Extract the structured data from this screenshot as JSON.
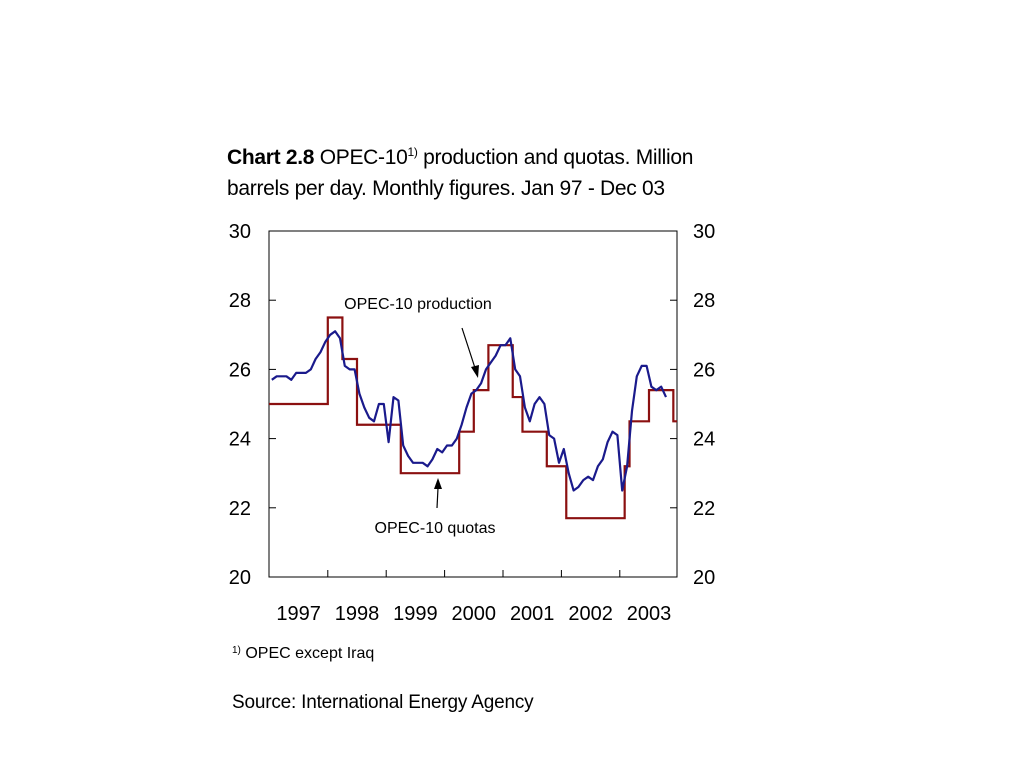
{
  "title": {
    "label": "Chart 2.8",
    "text1": "OPEC-10",
    "sup": "1)",
    "text2": " production and quotas. Million barrels per day. Monthly figures. Jan 97 - Dec 03"
  },
  "footnote": {
    "sup": "1)",
    "text": " OPEC except Iraq"
  },
  "source": "Source: International Energy Agency",
  "colors": {
    "production": "#1a1a8c",
    "quotas": "#8b1010",
    "axis": "#000000"
  },
  "chart_data": {
    "type": "line",
    "x_start": "1997-01",
    "x_step": "month",
    "xtick_labels": [
      "1997",
      "1998",
      "1999",
      "2000",
      "2001",
      "2002",
      "2003"
    ],
    "ylim": [
      20,
      30
    ],
    "yticks": [
      20,
      22,
      24,
      26,
      28,
      30
    ],
    "y_axis_right_mirror": true,
    "grid": false,
    "annotations": [
      {
        "text": "OPEC-10 production",
        "target_series": "OPEC-10 production"
      },
      {
        "text": "OPEC-10 quotas",
        "target_series": "OPEC-10 quotas"
      }
    ],
    "series": [
      {
        "name": "OPEC-10 production",
        "values": [
          25.7,
          25.8,
          25.8,
          25.8,
          25.7,
          25.9,
          25.9,
          25.9,
          26.0,
          26.3,
          26.5,
          26.8,
          27.0,
          27.1,
          26.9,
          26.1,
          26.0,
          26.0,
          25.3,
          24.9,
          24.6,
          24.5,
          25.0,
          25.0,
          23.9,
          25.2,
          25.1,
          23.8,
          23.5,
          23.3,
          23.3,
          23.3,
          23.2,
          23.4,
          23.7,
          23.6,
          23.8,
          23.8,
          24.0,
          24.4,
          24.9,
          25.3,
          25.4,
          25.6,
          26.0,
          26.2,
          26.4,
          26.7,
          26.7,
          26.9,
          26.0,
          25.8,
          24.9,
          24.5,
          25.0,
          25.2,
          25.0,
          24.1,
          24.0,
          23.3,
          23.7,
          23.0,
          22.5,
          22.6,
          22.8,
          22.9,
          22.8,
          23.2,
          23.4,
          23.9,
          24.2,
          24.1,
          22.5,
          23.2,
          24.8,
          25.8,
          26.1,
          26.1,
          25.5,
          25.4,
          25.5,
          25.2
        ]
      },
      {
        "name": "OPEC-10 quotas",
        "values": [
          25.0,
          25.0,
          25.0,
          25.0,
          25.0,
          25.0,
          25.0,
          25.0,
          25.0,
          25.0,
          25.0,
          25.0,
          27.5,
          27.5,
          27.5,
          26.3,
          26.3,
          26.3,
          24.4,
          24.4,
          24.4,
          24.4,
          24.4,
          24.4,
          24.4,
          24.4,
          24.4,
          23.0,
          23.0,
          23.0,
          23.0,
          23.0,
          23.0,
          23.0,
          23.0,
          23.0,
          23.0,
          23.0,
          23.0,
          24.2,
          24.2,
          24.2,
          25.4,
          25.4,
          25.4,
          26.7,
          26.7,
          26.7,
          26.7,
          26.7,
          25.2,
          25.2,
          24.2,
          24.2,
          24.2,
          24.2,
          24.2,
          23.2,
          23.2,
          23.2,
          23.2,
          21.7,
          21.7,
          21.7,
          21.7,
          21.7,
          21.7,
          21.7,
          21.7,
          21.7,
          21.7,
          21.7,
          21.7,
          23.2,
          24.5,
          24.5,
          24.5,
          24.5,
          25.4,
          25.4,
          25.4,
          25.4,
          25.4,
          24.5
        ]
      }
    ]
  }
}
